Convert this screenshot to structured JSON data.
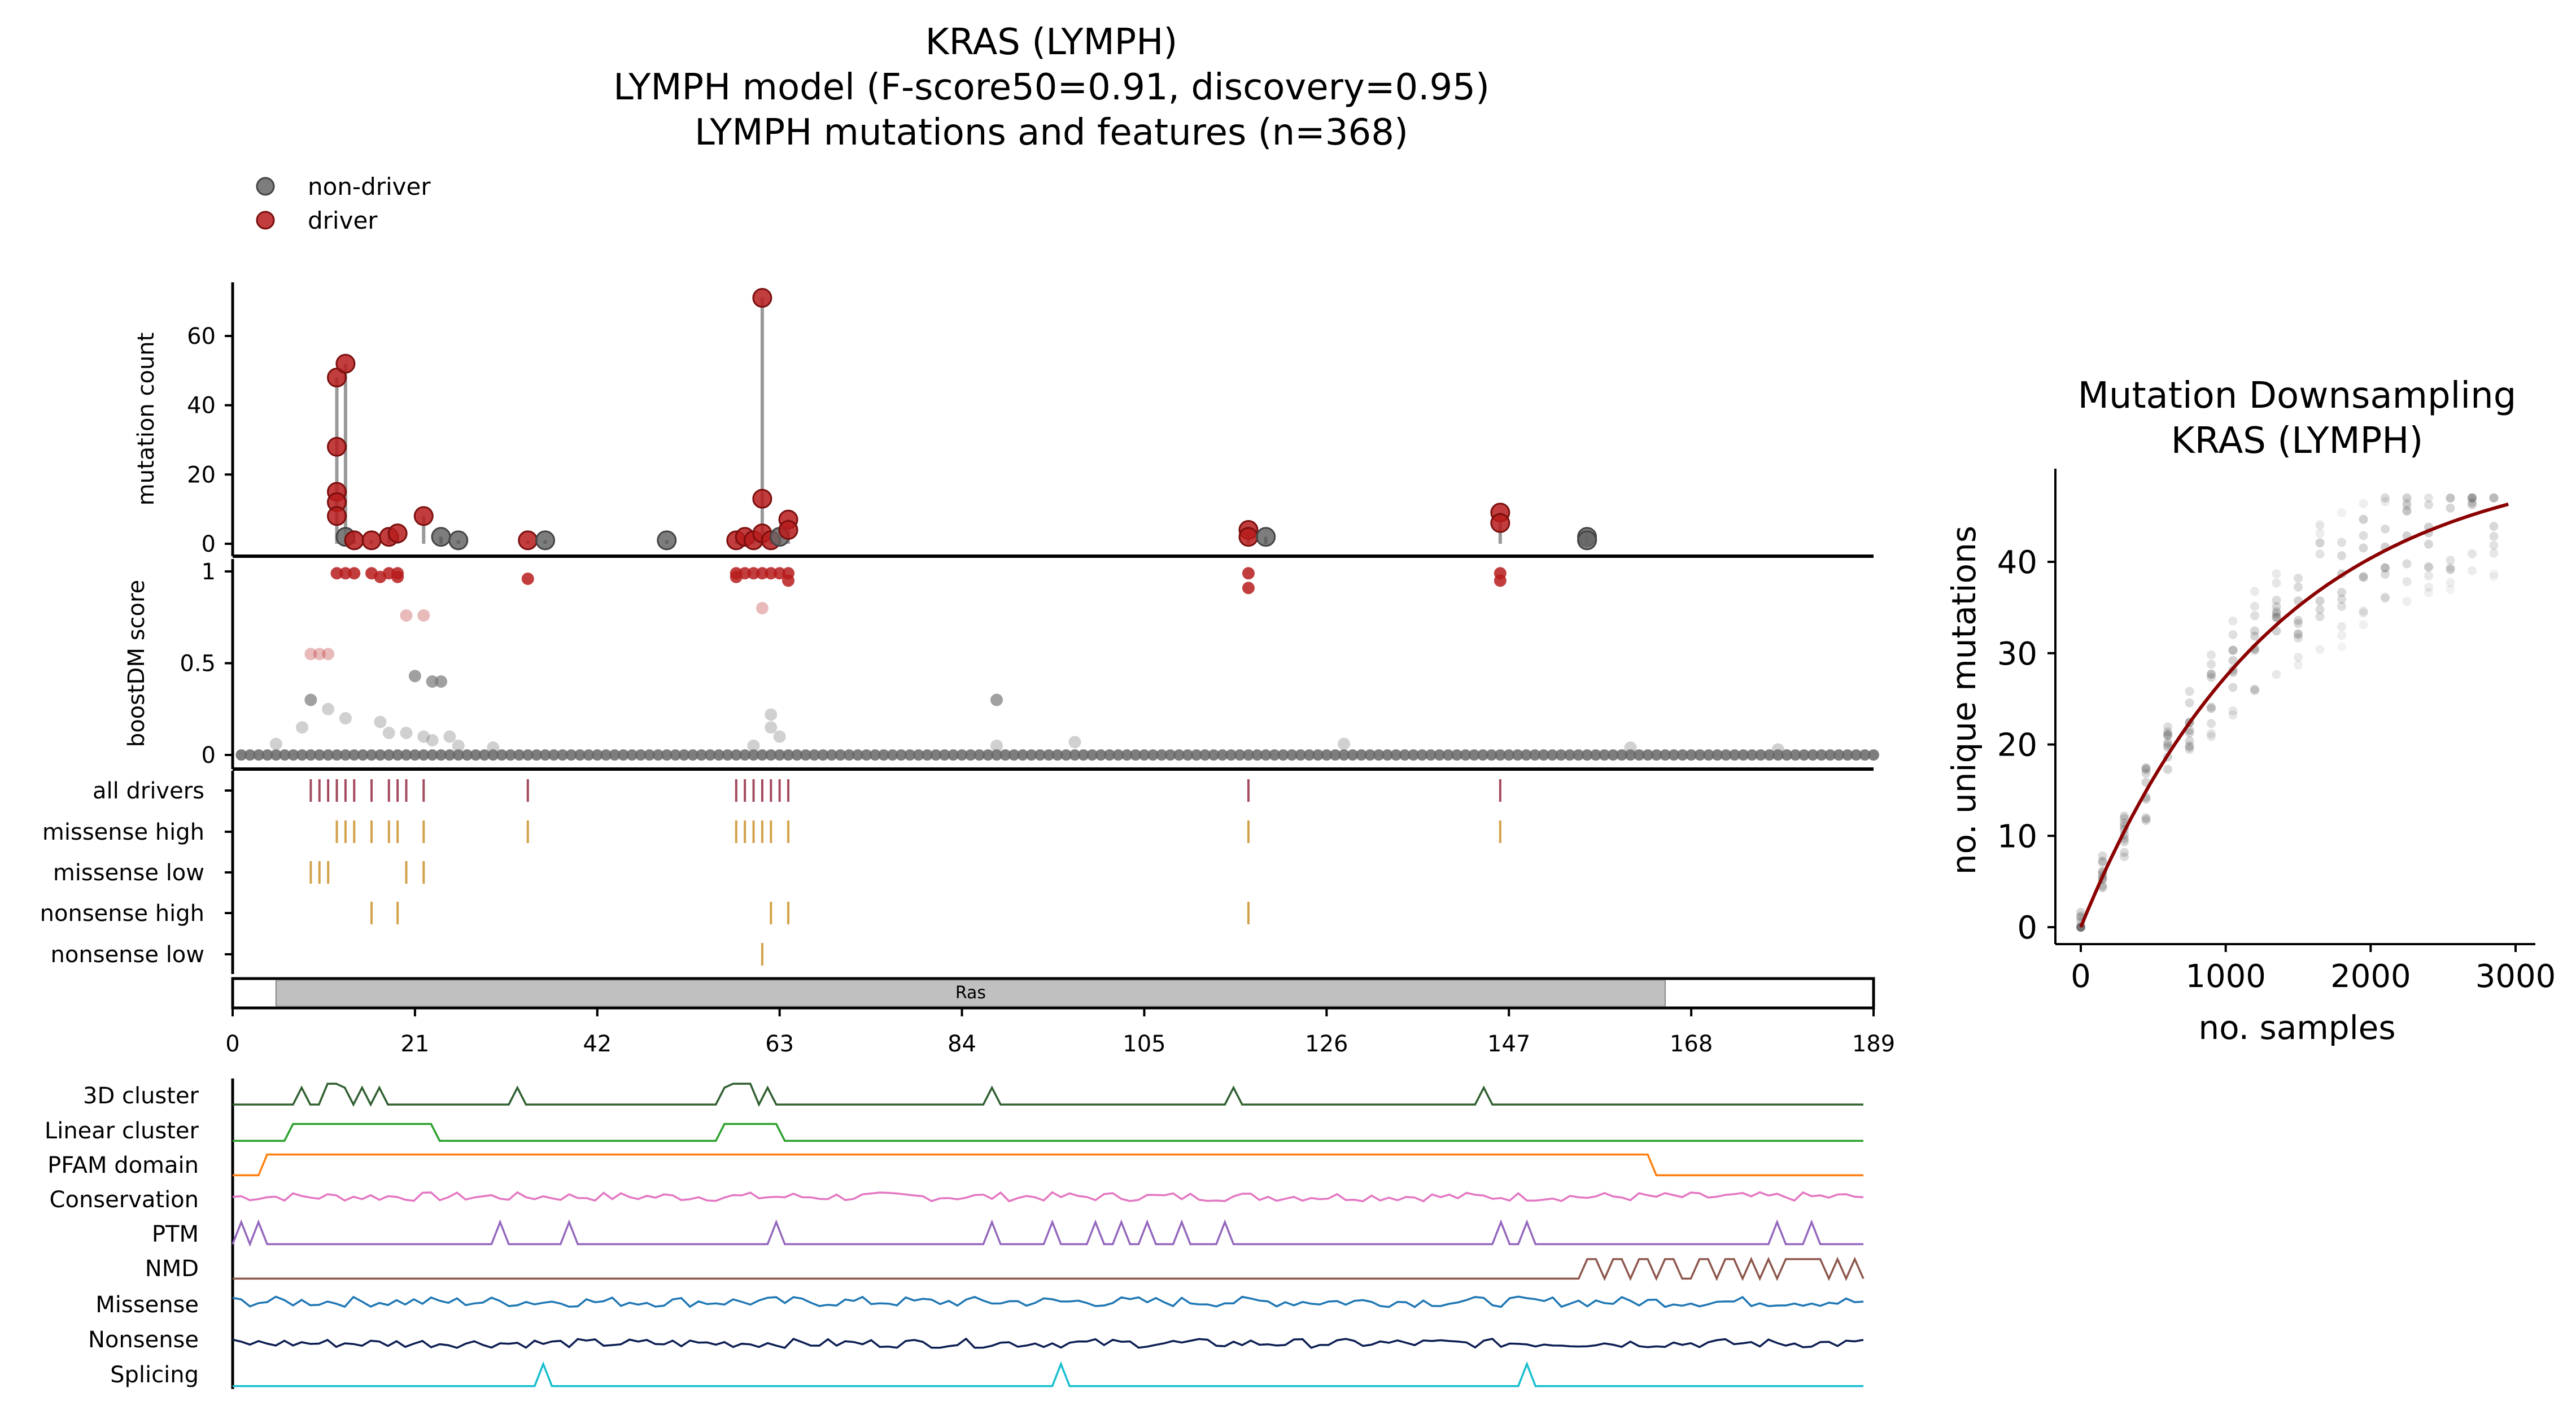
{
  "figure": {
    "title_lines": [
      "KRAS (LYMPH)",
      "LYMPH model (F-score50=0.91, discovery=0.95)",
      "LYMPH mutations and features (n=368)"
    ],
    "legend": [
      {
        "label": "non-driver",
        "color": "#666666"
      },
      {
        "label": "driver",
        "color": "#b71c1c"
      }
    ]
  },
  "colors": {
    "driver": "#b71c1c",
    "nondriver": "#666666",
    "all_drivers_tick": "#a34a5e",
    "subtype_tick": "#d2a24a",
    "domain_fill": "#c0c0c0"
  },
  "chart_data": [
    {
      "type": "scatter",
      "name": "needle-plot",
      "xlim": [
        0,
        189
      ],
      "ylabel": "mutation count",
      "ylim": [
        0,
        70
      ],
      "yticks": [
        0,
        20,
        40,
        60
      ],
      "points": [
        {
          "x": 12,
          "y": 48,
          "driver": true
        },
        {
          "x": 12,
          "y": 28,
          "driver": true
        },
        {
          "x": 12,
          "y": 15,
          "driver": true
        },
        {
          "x": 12,
          "y": 12,
          "driver": true
        },
        {
          "x": 12,
          "y": 8,
          "driver": true
        },
        {
          "x": 13,
          "y": 52,
          "driver": true
        },
        {
          "x": 13,
          "y": 2,
          "driver": false
        },
        {
          "x": 14,
          "y": 1,
          "driver": true
        },
        {
          "x": 16,
          "y": 1,
          "driver": true
        },
        {
          "x": 18,
          "y": 2,
          "driver": true
        },
        {
          "x": 19,
          "y": 3,
          "driver": true
        },
        {
          "x": 22,
          "y": 8,
          "driver": true
        },
        {
          "x": 24,
          "y": 2,
          "driver": false
        },
        {
          "x": 26,
          "y": 1,
          "driver": false
        },
        {
          "x": 34,
          "y": 1,
          "driver": true
        },
        {
          "x": 36,
          "y": 1,
          "driver": false
        },
        {
          "x": 50,
          "y": 1,
          "driver": false
        },
        {
          "x": 58,
          "y": 1,
          "driver": true
        },
        {
          "x": 59,
          "y": 2,
          "driver": true
        },
        {
          "x": 60,
          "y": 1,
          "driver": true
        },
        {
          "x": 61,
          "y": 71,
          "driver": true
        },
        {
          "x": 61,
          "y": 13,
          "driver": true
        },
        {
          "x": 61,
          "y": 3,
          "driver": true
        },
        {
          "x": 62,
          "y": 1,
          "driver": true
        },
        {
          "x": 63,
          "y": 2,
          "driver": false
        },
        {
          "x": 64,
          "y": 7,
          "driver": true
        },
        {
          "x": 64,
          "y": 4,
          "driver": true
        },
        {
          "x": 117,
          "y": 4,
          "driver": true
        },
        {
          "x": 117,
          "y": 2,
          "driver": true
        },
        {
          "x": 119,
          "y": 2,
          "driver": false
        },
        {
          "x": 146,
          "y": 9,
          "driver": true
        },
        {
          "x": 146,
          "y": 6,
          "driver": true
        },
        {
          "x": 156,
          "y": 2,
          "driver": false
        },
        {
          "x": 156,
          "y": 1,
          "driver": false
        }
      ]
    },
    {
      "type": "scatter",
      "name": "boostdm-score",
      "xlim": [
        0,
        189
      ],
      "ylabel": "boostDM score",
      "ylim": [
        0,
        1
      ],
      "ytick_labels": [
        "0",
        "0.5",
        "1"
      ],
      "points": [
        {
          "x": 12,
          "y": 0.99
        },
        {
          "x": 13,
          "y": 0.99
        },
        {
          "x": 14,
          "y": 0.99
        },
        {
          "x": 16,
          "y": 0.99
        },
        {
          "x": 17,
          "y": 0.97
        },
        {
          "x": 18,
          "y": 0.99
        },
        {
          "x": 19,
          "y": 0.99
        },
        {
          "x": 19,
          "y": 0.97
        },
        {
          "x": 34,
          "y": 0.96
        },
        {
          "x": 58,
          "y": 0.99
        },
        {
          "x": 58,
          "y": 0.97
        },
        {
          "x": 59,
          "y": 0.99
        },
        {
          "x": 60,
          "y": 0.99
        },
        {
          "x": 61,
          "y": 0.99
        },
        {
          "x": 62,
          "y": 0.99
        },
        {
          "x": 63,
          "y": 0.99
        },
        {
          "x": 64,
          "y": 0.99
        },
        {
          "x": 64,
          "y": 0.95
        },
        {
          "x": 117,
          "y": 0.99
        },
        {
          "x": 117,
          "y": 0.91
        },
        {
          "x": 146,
          "y": 0.99
        },
        {
          "x": 146,
          "y": 0.95
        },
        {
          "x": 20,
          "y": 0.76
        },
        {
          "x": 22,
          "y": 0.76
        },
        {
          "x": 61,
          "y": 0.8
        },
        {
          "x": 9,
          "y": 0.55
        },
        {
          "x": 10,
          "y": 0.55
        },
        {
          "x": 11,
          "y": 0.55
        },
        {
          "x": 23,
          "y": 0.4
        },
        {
          "x": 24,
          "y": 0.4
        },
        {
          "x": 21,
          "y": 0.43
        },
        {
          "x": 9,
          "y": 0.3
        },
        {
          "x": 11,
          "y": 0.25
        },
        {
          "x": 8,
          "y": 0.15
        },
        {
          "x": 13,
          "y": 0.2
        },
        {
          "x": 17,
          "y": 0.18
        },
        {
          "x": 18,
          "y": 0.12
        },
        {
          "x": 20,
          "y": 0.12
        },
        {
          "x": 22,
          "y": 0.1
        },
        {
          "x": 23,
          "y": 0.08
        },
        {
          "x": 25,
          "y": 0.1
        },
        {
          "x": 5,
          "y": 0.06
        },
        {
          "x": 26,
          "y": 0.05
        },
        {
          "x": 30,
          "y": 0.04
        },
        {
          "x": 62,
          "y": 0.22
        },
        {
          "x": 62,
          "y": 0.15
        },
        {
          "x": 63,
          "y": 0.1
        },
        {
          "x": 60,
          "y": 0.05
        },
        {
          "x": 88,
          "y": 0.3
        },
        {
          "x": 88,
          "y": 0.05
        },
        {
          "x": 97,
          "y": 0.07
        },
        {
          "x": 128,
          "y": 0.06
        },
        {
          "x": 161,
          "y": 0.04
        },
        {
          "x": 178,
          "y": 0.03
        }
      ]
    },
    {
      "type": "table",
      "name": "driver-tracks",
      "xlim": [
        0,
        189
      ],
      "tracks": [
        {
          "label": "all drivers",
          "positions": [
            9,
            10,
            11,
            12,
            13,
            14,
            16,
            18,
            19,
            20,
            22,
            34,
            58,
            59,
            60,
            61,
            62,
            63,
            64,
            117,
            146
          ],
          "color": "#a34a5e"
        },
        {
          "label": "missense high",
          "positions": [
            12,
            13,
            14,
            16,
            18,
            19,
            22,
            34,
            58,
            59,
            60,
            61,
            62,
            64,
            117,
            146
          ],
          "color": "#d2a24a"
        },
        {
          "label": "missense low",
          "positions": [
            9,
            10,
            11,
            20,
            22
          ],
          "color": "#d2a24a"
        },
        {
          "label": "nonsense high",
          "positions": [
            16,
            19,
            62,
            64,
            117
          ],
          "color": "#d2a24a"
        },
        {
          "label": "nonsense low",
          "positions": [
            61
          ],
          "color": "#d2a24a"
        }
      ]
    },
    {
      "type": "bar",
      "name": "protein-domain",
      "domains": [
        {
          "label": "Ras",
          "start": 5,
          "end": 165
        }
      ],
      "xlim": [
        0,
        189
      ],
      "xticks": [
        0,
        21,
        42,
        63,
        84,
        105,
        126,
        147,
        168,
        189
      ]
    },
    {
      "type": "line",
      "name": "feature-tracks",
      "xlim": [
        0,
        189
      ],
      "tracks": [
        {
          "label": "3D cluster",
          "color": "#2f5f2f"
        },
        {
          "label": "Linear cluster",
          "color": "#2ca02c"
        },
        {
          "label": "PFAM domain",
          "color": "#ff7f0e"
        },
        {
          "label": "Conservation",
          "color": "#e377c2"
        },
        {
          "label": "PTM",
          "color": "#9467bd"
        },
        {
          "label": "NMD",
          "color": "#8c564b"
        },
        {
          "label": "Missense",
          "color": "#1f77b4"
        },
        {
          "label": "Nonsense",
          "color": "#0b1d51"
        },
        {
          "label": "Splicing",
          "color": "#17becf"
        }
      ]
    },
    {
      "type": "scatter",
      "name": "mutation-downsampling",
      "title_lines": [
        "Mutation Downsampling",
        "KRAS (LYMPH)"
      ],
      "xlabel": "no. samples",
      "ylabel": "no. unique mutations",
      "xlim": [
        0,
        3000
      ],
      "ylim": [
        0,
        48
      ],
      "xticks": [
        0,
        1000,
        2000,
        3000
      ],
      "yticks": [
        0,
        10,
        20,
        30,
        40
      ],
      "fit_color": "#8b0000",
      "fit_asymptote": 52,
      "fit_rate": 0.00075
    }
  ]
}
